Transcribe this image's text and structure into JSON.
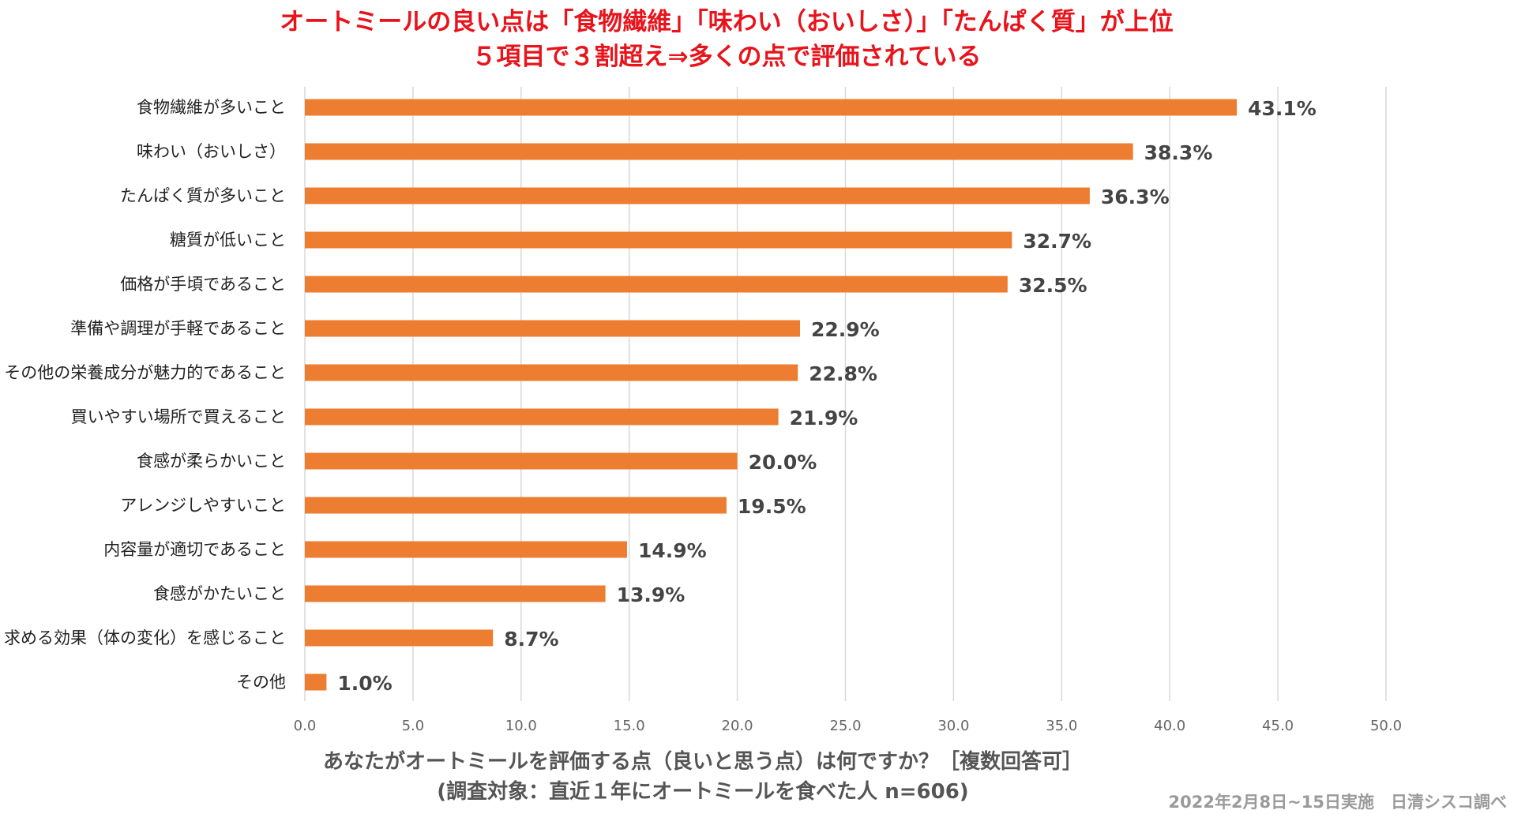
{
  "chart_data": {
    "type": "bar",
    "orientation": "horizontal",
    "title": [
      "オートミールの良い点は「食物繊維」「味わい（おいしさ）」「たんぱく質」が上位",
      "５項目で３割超え⇒多くの点で評価されている"
    ],
    "categories": [
      "食物繊維が多いこと",
      "味わい（おいしさ）",
      "たんぱく質が多いこと",
      "糖質が低いこと",
      "価格が手頃であること",
      "準備や調理が手軽であること",
      "その他の栄養成分が魅力的であること",
      "買いやすい場所で買えること",
      "食感が柔らかいこと",
      "アレンジしやすいこと",
      "内容量が適切であること",
      "食感がかたいこと",
      "求める効果（体の変化）を感じること",
      "その他"
    ],
    "values": [
      43.1,
      38.3,
      36.3,
      32.7,
      32.5,
      22.9,
      22.8,
      21.9,
      20.0,
      19.5,
      14.9,
      13.9,
      8.7,
      1.0
    ],
    "value_labels": [
      "43.1%",
      "38.3%",
      "36.3%",
      "32.7%",
      "32.5%",
      "22.9%",
      "22.8%",
      "21.9%",
      "20.0%",
      "19.5%",
      "14.9%",
      "13.9%",
      "8.7%",
      "1.0%"
    ],
    "xlim": [
      0,
      50
    ],
    "xticks": [
      0,
      5,
      10,
      15,
      20,
      25,
      30,
      35,
      40,
      45,
      50
    ],
    "xtick_labels": [
      "0.0",
      "5.0",
      "10.0",
      "15.0",
      "20.0",
      "25.0",
      "30.0",
      "35.0",
      "40.0",
      "45.0",
      "50.0"
    ],
    "xlabel": [
      "あなたがオートミールを評価する点（良いと思う点）は何ですか？［複数回答可］",
      "(調査対象：直近１年にオートミールを食べた人 n=606)"
    ],
    "ylabel": "",
    "grid": true,
    "legend": "none",
    "bar_color": "#ed7d31",
    "grid_color": "#d9d9d9"
  },
  "source": "2022年2月8日~15日実施　日清シスコ調べ"
}
